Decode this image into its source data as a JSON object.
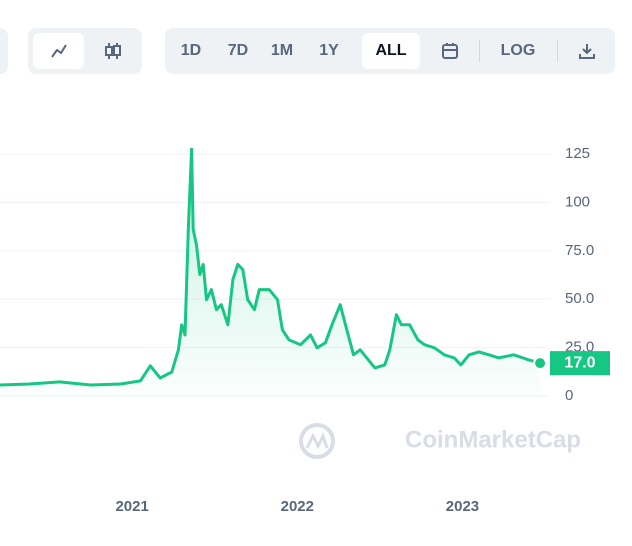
{
  "toolbar": {
    "ranges": [
      "1D",
      "7D",
      "1M",
      "1Y",
      "ALL"
    ],
    "active_range": "ALL",
    "log_button": "LOG"
  },
  "chart_data": {
    "type": "line",
    "color": "#16c784",
    "log_scale": false,
    "grid": true,
    "watermark": "CoinMarketCap",
    "x": [
      2020.2,
      2020.38,
      2020.56,
      2020.75,
      2020.93,
      2021.05,
      2021.11,
      2021.17,
      2021.24,
      2021.28,
      2021.3,
      2021.32,
      2021.34,
      2021.36,
      2021.37,
      2021.39,
      2021.41,
      2021.43,
      2021.45,
      2021.48,
      2021.51,
      2021.54,
      2021.58,
      2021.61,
      2021.64,
      2021.67,
      2021.7,
      2021.74,
      2021.77,
      2021.83,
      2021.88,
      2021.91,
      2021.95,
      2022.02,
      2022.08,
      2022.12,
      2022.17,
      2022.21,
      2022.26,
      2022.3,
      2022.34,
      2022.38,
      2022.43,
      2022.47,
      2022.53,
      2022.56,
      2022.6,
      2022.63,
      2022.68,
      2022.73,
      2022.77,
      2022.83,
      2022.89,
      2022.95,
      2022.99,
      2023.04,
      2023.1,
      2023.16,
      2023.22,
      2023.31,
      2023.4,
      2023.47
    ],
    "values": [
      5.7,
      6.2,
      7.3,
      5.7,
      6.2,
      7.8,
      15.6,
      9.3,
      12.4,
      23.9,
      36.8,
      31.6,
      86,
      127.6,
      86,
      78,
      62.8,
      68,
      49.8,
      55,
      44.6,
      47.2,
      36.8,
      60.2,
      68,
      65.4,
      49.8,
      44.6,
      55,
      55,
      49.8,
      34.2,
      29,
      26.5,
      31.6,
      24.9,
      27.5,
      36.8,
      47.2,
      34.2,
      21.3,
      23.9,
      18.7,
      14.5,
      16.1,
      23.9,
      42,
      36.8,
      36.8,
      29,
      26.5,
      24.9,
      21.3,
      19.7,
      16.1,
      21.3,
      22.8,
      21.3,
      19.7,
      21.3,
      18.7,
      17
    ],
    "value_labels": [
      null,
      null,
      null,
      null,
      null,
      null,
      null,
      null,
      null,
      null,
      null,
      null,
      null,
      null,
      null,
      null,
      null,
      null,
      null,
      null,
      null,
      null,
      null,
      null,
      null,
      null,
      null,
      null,
      null,
      null,
      null,
      null,
      null,
      null,
      null,
      null,
      null,
      null,
      null,
      null,
      null,
      null,
      null,
      null,
      null,
      null,
      null,
      null,
      null,
      null,
      null,
      null,
      null,
      null,
      null,
      null,
      null,
      null,
      null,
      null,
      null,
      "17.0"
    ],
    "xlim": [
      2020.2,
      2023.53
    ],
    "xticks": [
      2021,
      2022,
      2023
    ],
    "ylim": [
      0,
      153
    ],
    "yticks": [
      125,
      100,
      {
        "value": 75,
        "label": "75.0"
      },
      {
        "value": 50,
        "label": "50.0"
      },
      {
        "value": 25,
        "label": "25.0"
      },
      0
    ]
  }
}
